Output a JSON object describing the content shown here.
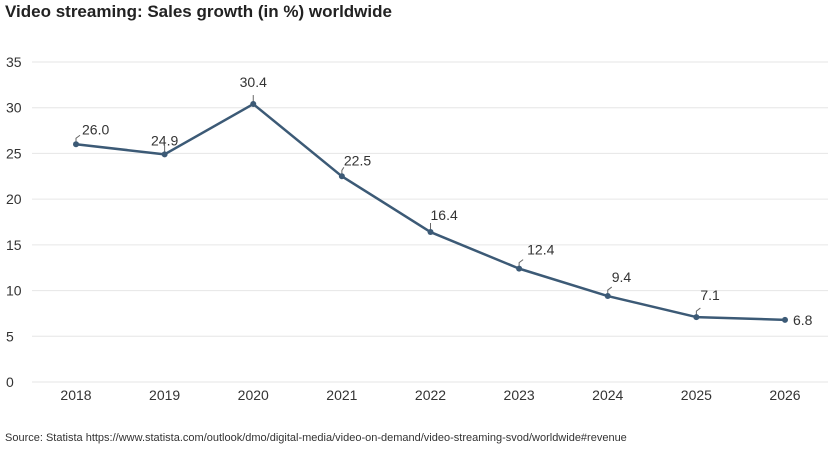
{
  "title": "Video streaming: Sales growth (in %) worldwide",
  "source": "Source: Statista https://www.statista.com/outlook/dmo/digital-media/video-on-demand/video-streaming-svod/worldwide#revenue",
  "colors": {
    "line": "#3c5a76",
    "grid": "#e6e6e6",
    "label_leader": "#666666"
  },
  "chart_data": {
    "type": "line",
    "title": "Video streaming: Sales growth (in %) worldwide",
    "xlabel": "",
    "ylabel": "",
    "categories": [
      "2018",
      "2019",
      "2020",
      "2021",
      "2022",
      "2023",
      "2024",
      "2025",
      "2026"
    ],
    "series": [
      {
        "values": [
          26.0,
          24.9,
          30.4,
          22.5,
          16.4,
          12.4,
          9.4,
          7.1,
          6.8
        ]
      }
    ],
    "data_labels": [
      "26.0",
      "24.9",
      "30.4",
      "22.5",
      "16.4",
      "12.4",
      "9.4",
      "7.1",
      "6.8"
    ],
    "ylim": [
      0,
      35
    ],
    "yticks": [
      0,
      5,
      10,
      15,
      20,
      25,
      30,
      35
    ],
    "grid": true,
    "legend": "none"
  }
}
